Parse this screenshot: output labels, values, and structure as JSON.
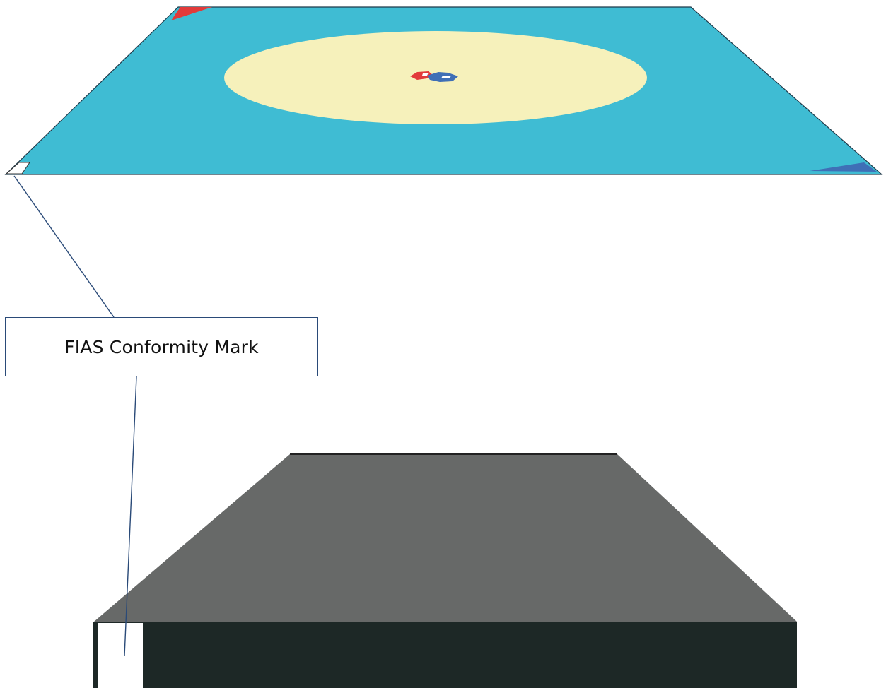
{
  "callout": {
    "label": "FIAS Conformity Mark"
  },
  "colors": {
    "mat_surface": "#3fbcd3",
    "center_circle": "#f6f1bb",
    "red_corner": "#e23a3a",
    "blue_corner": "#3f6fb6",
    "mat_side_top": "#676968",
    "mat_side_front": "#1d2826",
    "mark": "#ffffff",
    "leader_line": "#2a4a78"
  }
}
